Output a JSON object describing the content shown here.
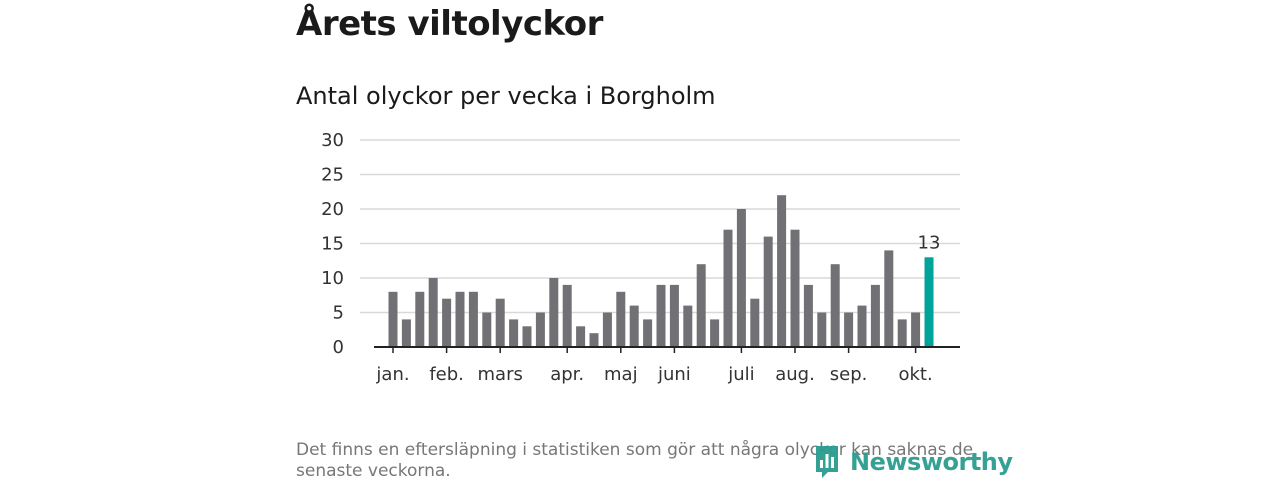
{
  "title": "Årets viltolyckor",
  "subtitle": "Antal olyckor per vecka i Borgholm",
  "footnote": "Det finns en eftersläpning i statistiken som gör att några olyckor kan saknas de senaste veckorna.",
  "logo": {
    "text": "Newsworthy",
    "icon": "newsworthy-logo-icon"
  },
  "colors": {
    "bar": "#717075",
    "highlight": "#00a399",
    "grid": "#d9d9d9",
    "axis": "#222222",
    "logo": "#2a9d8f"
  },
  "chart_data": {
    "type": "bar",
    "title": "Antal olyckor per vecka i Borgholm",
    "xlabel": "",
    "ylabel": "",
    "ylim": [
      0,
      30
    ],
    "yticks": [
      "0",
      "5",
      "10",
      "15",
      "20",
      "25",
      "30"
    ],
    "weeks": [
      1,
      2,
      3,
      4,
      5,
      6,
      7,
      8,
      9,
      10,
      11,
      12,
      13,
      14,
      15,
      16,
      17,
      18,
      19,
      20,
      21,
      22,
      23,
      24,
      25,
      26,
      27,
      28,
      29,
      30,
      31,
      32,
      33,
      34,
      35,
      36,
      37,
      38,
      39,
      40,
      41
    ],
    "values": [
      8,
      4,
      8,
      10,
      7,
      8,
      8,
      5,
      7,
      4,
      3,
      5,
      10,
      9,
      3,
      2,
      5,
      8,
      6,
      4,
      9,
      9,
      6,
      12,
      4,
      17,
      20,
      7,
      16,
      22,
      17,
      9,
      5,
      12,
      5,
      6,
      9,
      14,
      4,
      5,
      13
    ],
    "highlight_index": 40,
    "highlight_label": "13",
    "month_labels": [
      {
        "label": "jan.",
        "week": 1
      },
      {
        "label": "feb.",
        "week": 5
      },
      {
        "label": "mars",
        "week": 9
      },
      {
        "label": "apr.",
        "week": 14
      },
      {
        "label": "maj",
        "week": 18
      },
      {
        "label": "juni",
        "week": 22
      },
      {
        "label": "juli",
        "week": 27
      },
      {
        "label": "aug.",
        "week": 31
      },
      {
        "label": "sep.",
        "week": 35
      },
      {
        "label": "okt.",
        "week": 40
      }
    ]
  }
}
